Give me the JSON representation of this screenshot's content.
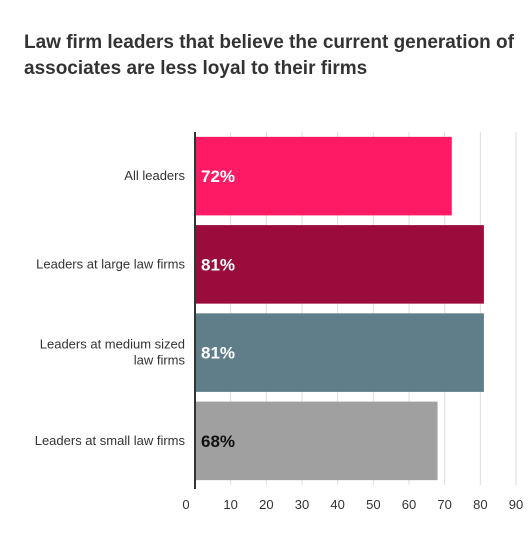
{
  "chart_data": {
    "type": "bar",
    "orientation": "horizontal",
    "title": "Law firm leaders that believe the current generation of associates are less loyal to their firms",
    "categories": [
      [
        "All leaders"
      ],
      [
        "Leaders at large law firms"
      ],
      [
        "Leaders at medium sized",
        "law firms"
      ],
      [
        "Leaders at small law firms"
      ]
    ],
    "values": [
      72,
      81,
      81,
      68
    ],
    "data_labels": [
      "72%",
      "81%",
      "81%",
      "68%"
    ],
    "colors": [
      "#ff1a66",
      "#990c3c",
      "#607d8a",
      "#a0a0a0"
    ],
    "label_colors": [
      "#ffffff",
      "#ffffff",
      "#ffffff",
      "#111111"
    ],
    "xlim": [
      0,
      90
    ],
    "xticks": [
      "0",
      "10",
      "20",
      "30",
      "40",
      "50",
      "60",
      "70",
      "80",
      "90"
    ],
    "grid": true,
    "legend": "none"
  }
}
